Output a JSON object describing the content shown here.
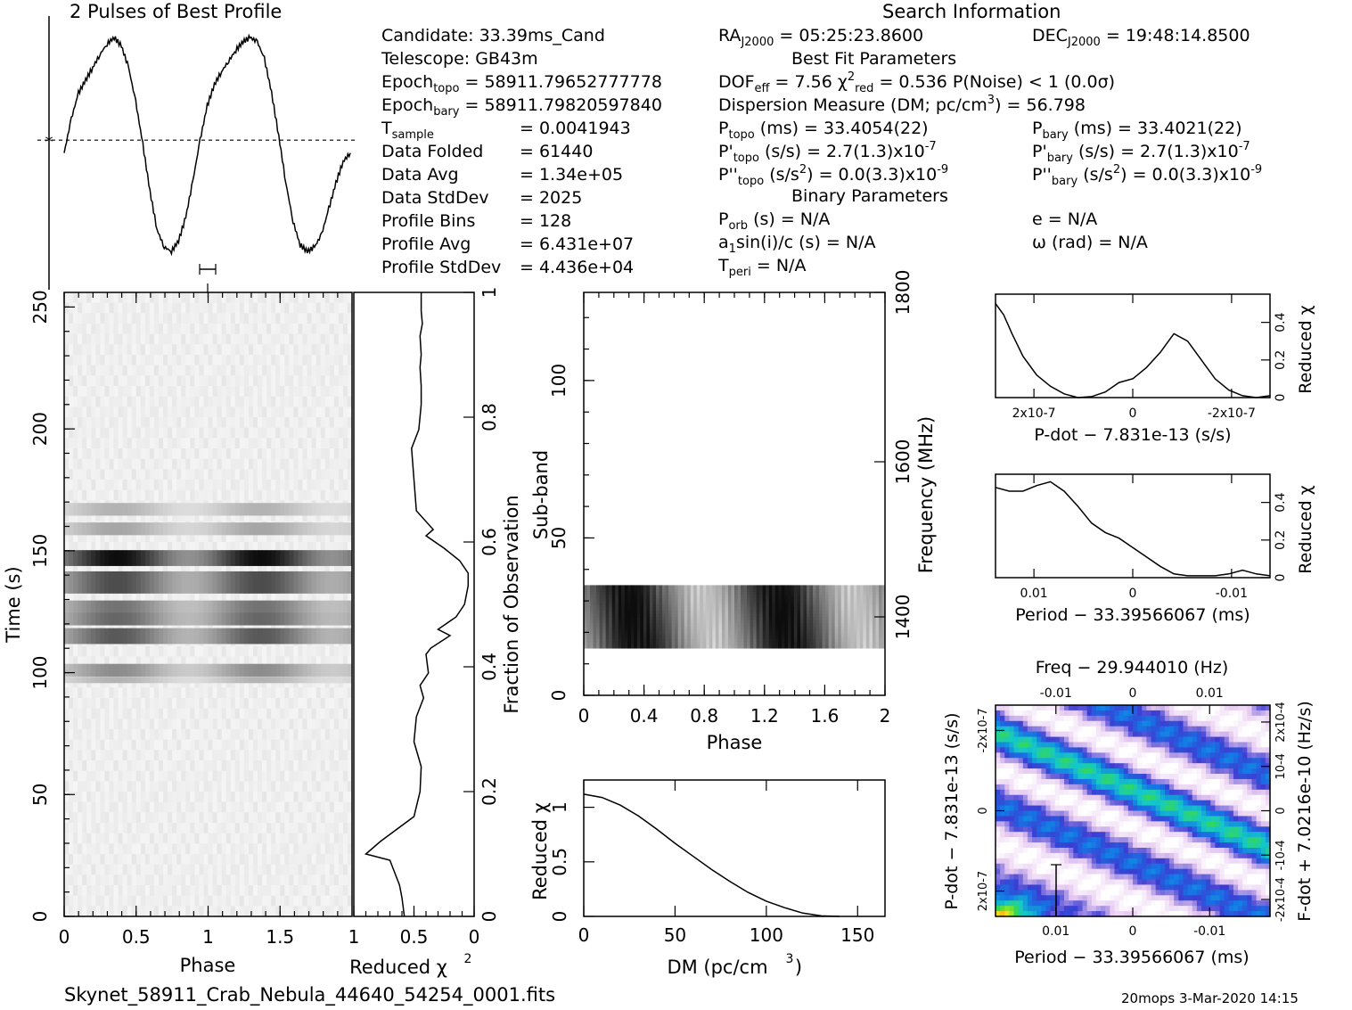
{
  "titles": {
    "profile_title": "2 Pulses of Best Profile",
    "search_info": "Search Information",
    "best_fit": "Best Fit Parameters",
    "binary": "Binary Parameters",
    "filename": "Skynet_58911_Crab_Nebula_44640_54254_0001.fits",
    "footer": "20mops  3-Mar-2020 14:15"
  },
  "info_left": [
    {
      "label": "Candidate:  33.39ms_Cand",
      "value": ""
    },
    {
      "label": "Telescope:  GB43m",
      "value": ""
    },
    {
      "label": "Epoch",
      "sub": "topo",
      "value": "= 58911.79652777778"
    },
    {
      "label": "Epoch",
      "sub": "bary",
      "value": "= 58911.79820597840"
    },
    {
      "label": "T",
      "sub": "sample",
      "value": "=   0.0041943"
    },
    {
      "label": "Data Folded",
      "value": "=   61440"
    },
    {
      "label": "Data Avg",
      "value": "=   1.34e+05"
    },
    {
      "label": "Data StdDev",
      "value": "=   2025"
    },
    {
      "label": "Profile Bins",
      "value": "=   128"
    },
    {
      "label": "Profile Avg",
      "value": "=   6.431e+07"
    },
    {
      "label": "Profile StdDev",
      "value": "=   4.436e+04"
    }
  ],
  "search": {
    "ra_label": "RA",
    "ra_sub": "J2000",
    "ra_value": "= 05:25:23.8600",
    "dec_label": "DEC",
    "dec_sub": "J2000",
    "dec_value": "= 19:48:14.8500",
    "dof": "DOF",
    "dof_sub": "eff",
    "dof_value": "= 7.56",
    "chi": "χ",
    "chi_sup": "2",
    "chi_sub": "red",
    "chi_value": "= 0.536",
    "noise": "P(Noise) < 1   (0.0σ)",
    "dm_text": "Dispersion Measure (DM; pc/cm",
    "dm_sup": "3",
    "dm_value": ") = 56.798",
    "ptopo": "P",
    "ptopo_sub": "topo",
    "ptopo_value": "(ms) =  33.4054(22)",
    "pbary": "P",
    "pbary_sub": "bary",
    "pbary_value": "(ms) =  33.4021(22)",
    "pdtopo": "P'",
    "pdtopo_sub": "topo",
    "pdtopo_value": "(s/s) =  2.7(1.3)x10",
    "pdtopo_exp": "-7",
    "pdbary": "P'",
    "pdbary_sub": "bary",
    "pdbary_value": "(s/s) =  2.7(1.3)x10",
    "pdbary_exp": "-7",
    "pddtopo": "P''",
    "pddtopo_sub": "topo",
    "pddtopo_value": "(s/s",
    "pddtopo_sup": "2",
    "pddtopo_rest": ") = 0.0(3.3)x10",
    "pddtopo_exp": "-9",
    "pddbary": "P''",
    "pddbary_sub": "bary",
    "pddbary_value": "(s/s",
    "pddbary_sup": "2",
    "pddbary_rest": ") = 0.0(3.3)x10",
    "pddbary_exp": "-9",
    "porb": "P",
    "porb_sub": "orb",
    "porb_value": "(s) = N/A",
    "ecc": "e = N/A",
    "asini": "a",
    "asini_sub": "1",
    "asini_value": "sin(i)/c (s) = N/A",
    "omega": "ω (rad) = N/A",
    "tperi": "T",
    "tperi_sub": "peri",
    "tperi_value": "= N/A"
  },
  "chart_data": [
    {
      "id": "profile",
      "type": "line",
      "title": "2 Pulses of Best Profile",
      "x": [
        0,
        0.05,
        0.1,
        0.15,
        0.2,
        0.25,
        0.3,
        0.35,
        0.4,
        0.45,
        0.5,
        0.55,
        0.6,
        0.65,
        0.7,
        0.75,
        0.8,
        0.85,
        0.9,
        0.95,
        1.0,
        1.05,
        1.1,
        1.15,
        1.2,
        1.25,
        1.3,
        1.35,
        1.4,
        1.45,
        1.5,
        1.55,
        1.6,
        1.65,
        1.7,
        1.75,
        1.8,
        1.85,
        1.9,
        1.95,
        2.0
      ],
      "y": [
        0.46,
        0.62,
        0.74,
        0.8,
        0.86,
        0.92,
        0.97,
        1.0,
        0.96,
        0.86,
        0.7,
        0.5,
        0.28,
        0.1,
        0.02,
        0.0,
        0.05,
        0.16,
        0.33,
        0.52,
        0.68,
        0.78,
        0.84,
        0.89,
        0.94,
        0.98,
        1.0,
        0.98,
        0.9,
        0.74,
        0.54,
        0.32,
        0.14,
        0.03,
        0.0,
        0.02,
        0.08,
        0.2,
        0.32,
        0.42,
        0.46
      ],
      "dashed_level": 0.52
    },
    {
      "id": "time_phase",
      "type": "heatmap",
      "xlabel": "Phase",
      "ylabel": "Time (s)",
      "xticks": [
        "0",
        "0.5",
        "1",
        "1.5"
      ],
      "yticks": [
        "0",
        "50",
        "100",
        "150",
        "200",
        "250"
      ],
      "xlim": [
        0,
        2
      ],
      "ylim": [
        0,
        256
      ],
      "dark_bands": [
        {
          "t": 167,
          "h": 4,
          "level": 0.3
        },
        {
          "t": 159,
          "h": 4,
          "level": 0.35
        },
        {
          "t": 147,
          "h": 5,
          "level": 0.95
        },
        {
          "t": 137,
          "h": 7,
          "level": 0.7
        },
        {
          "t": 127,
          "h": 4,
          "level": 0.55
        },
        {
          "t": 122,
          "h": 4,
          "level": 0.6
        },
        {
          "t": 115,
          "h": 5,
          "level": 0.65
        },
        {
          "t": 101,
          "h": 4,
          "level": 0.45
        },
        {
          "t": 97,
          "h": 2,
          "level": 0.3
        }
      ]
    },
    {
      "id": "chi_vs_time",
      "type": "line",
      "xlabel": "Reduced χ2",
      "ylabel": "Fraction of Observation",
      "xticks": [
        "1",
        "0.5",
        "0"
      ],
      "yticks": [
        "0",
        "0.2",
        "0.4",
        "0.6",
        "0.8",
        "1"
      ],
      "x": [
        0.58,
        0.6,
        0.62,
        0.66,
        0.7,
        0.9,
        0.78,
        0.5,
        0.45,
        0.44,
        0.5,
        0.48,
        0.42,
        0.45,
        0.38,
        0.4,
        0.36,
        0.2,
        0.3,
        0.15,
        0.08,
        0.05,
        0.05,
        0.12,
        0.25,
        0.4,
        0.34,
        0.48,
        0.5,
        0.52,
        0.46,
        0.44,
        0.44,
        0.45,
        0.44,
        0.45,
        0.43,
        0.44,
        0.44
      ],
      "y": [
        0.0,
        0.03,
        0.05,
        0.07,
        0.09,
        0.1,
        0.12,
        0.16,
        0.2,
        0.24,
        0.28,
        0.32,
        0.35,
        0.37,
        0.39,
        0.42,
        0.43,
        0.45,
        0.46,
        0.48,
        0.5,
        0.53,
        0.55,
        0.57,
        0.59,
        0.61,
        0.62,
        0.65,
        0.7,
        0.75,
        0.78,
        0.82,
        0.85,
        0.88,
        0.9,
        0.93,
        0.95,
        0.97,
        1.0
      ]
    },
    {
      "id": "subband_phase",
      "type": "heatmap",
      "xlabel": "Phase",
      "ylabel": "Sub-band",
      "y2label": "Frequency (MHz)",
      "xticks": [
        "0",
        "0.4",
        "0.8",
        "1.2",
        "1.6",
        "2"
      ],
      "yticks": [
        "0",
        "50",
        "100"
      ],
      "y2ticks": [
        "1400",
        "1600",
        "1800"
      ],
      "xlim": [
        0,
        2
      ],
      "ylim": [
        0,
        128
      ],
      "band_range": [
        15,
        35
      ]
    },
    {
      "id": "chi_vs_dm",
      "type": "line",
      "xlabel": "DM (pc/cm3)",
      "ylabel": "Reduced χ2",
      "xticks": [
        "0",
        "50",
        "100",
        "150"
      ],
      "yticks": [
        "0",
        "0.5",
        "1"
      ],
      "xlim": [
        0,
        165
      ],
      "ylim": [
        0,
        1.25
      ],
      "x": [
        0,
        10,
        20,
        30,
        40,
        50,
        60,
        70,
        80,
        90,
        100,
        110,
        120,
        130,
        140
      ],
      "y": [
        1.12,
        1.09,
        1.02,
        0.92,
        0.8,
        0.67,
        0.55,
        0.43,
        0.32,
        0.22,
        0.14,
        0.08,
        0.03,
        0.005,
        0.0
      ]
    },
    {
      "id": "chi_vs_pdot",
      "type": "line",
      "xlabel": "P-dot − 7.831e-13 (s/s)",
      "ylabel": "Reduced χ2",
      "xticks": [
        "2x10-7",
        "0",
        "-2x10-7"
      ],
      "yticks": [
        "0",
        "0.2",
        "0.4"
      ],
      "ylim": [
        0,
        0.55
      ],
      "x": [
        0,
        0.03,
        0.06,
        0.1,
        0.15,
        0.2,
        0.25,
        0.3,
        0.35,
        0.4,
        0.45,
        0.5,
        0.55,
        0.6,
        0.65,
        0.7,
        0.75,
        0.8,
        0.85,
        0.9,
        0.95,
        1.0
      ],
      "y": [
        0.5,
        0.44,
        0.34,
        0.22,
        0.12,
        0.06,
        0.02,
        0.0,
        0.005,
        0.03,
        0.08,
        0.1,
        0.16,
        0.24,
        0.34,
        0.3,
        0.2,
        0.1,
        0.04,
        0.01,
        0.0,
        0.01
      ]
    },
    {
      "id": "chi_vs_period",
      "type": "line",
      "xlabel": "Period − 33.39566067 (ms)",
      "ylabel": "Reduced χ2",
      "xticks": [
        "0.01",
        "0",
        "-0.01"
      ],
      "yticks": [
        "0",
        "0.2",
        "0.4"
      ],
      "ylim": [
        0,
        0.55
      ],
      "x": [
        0,
        0.05,
        0.1,
        0.15,
        0.2,
        0.25,
        0.3,
        0.35,
        0.4,
        0.45,
        0.5,
        0.55,
        0.6,
        0.65,
        0.7,
        0.75,
        0.8,
        0.85,
        0.9,
        0.95,
        1.0
      ],
      "y": [
        0.48,
        0.46,
        0.46,
        0.49,
        0.51,
        0.46,
        0.38,
        0.29,
        0.24,
        0.21,
        0.16,
        0.11,
        0.06,
        0.02,
        0.01,
        0.01,
        0.01,
        0.02,
        0.04,
        0.02,
        0.01
      ]
    },
    {
      "id": "ppdot_plane",
      "type": "heatmap",
      "title": "Freq − 29.944010 (Hz)",
      "xlabel": "Period − 33.39566067 (ms)",
      "ylabel": "P-dot − 7.831e-13 (s/s)",
      "y2label": "F-dot + 7.0216e-10 (Hz/s)",
      "xticks": [
        "0.01",
        "0",
        "-0.01"
      ],
      "top_ticks": [
        "-0.01",
        "0",
        "0.01"
      ],
      "yticks": [
        "2x10-7",
        "0",
        "-2x10-7"
      ],
      "y2ticks": [
        "-2x10-4",
        "-10-4",
        "0",
        "10-4",
        "2x10-4"
      ]
    }
  ]
}
